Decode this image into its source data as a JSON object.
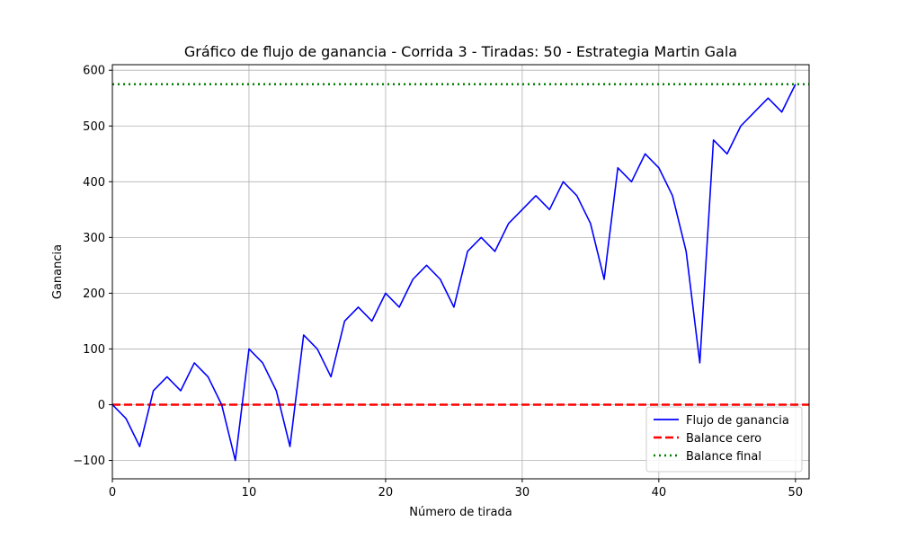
{
  "chart_data": {
    "type": "line",
    "title": "Gráfico de flujo de ganancia - Corrida 3 - Tiradas: 50 - Estrategia Martin Gala",
    "xlabel": "Número de tirada",
    "ylabel": "Ganancia",
    "xlim": [
      0,
      51
    ],
    "ylim": [
      -133,
      610
    ],
    "xticks": [
      0,
      10,
      20,
      30,
      40,
      50
    ],
    "yticks": [
      -100,
      0,
      100,
      200,
      300,
      400,
      500,
      600
    ],
    "grid": true,
    "legend_position": "lower-right",
    "x": [
      0,
      1,
      2,
      3,
      4,
      5,
      6,
      7,
      8,
      9,
      10,
      11,
      12,
      13,
      14,
      15,
      16,
      17,
      18,
      19,
      20,
      21,
      22,
      23,
      24,
      25,
      26,
      27,
      28,
      29,
      30,
      31,
      32,
      33,
      34,
      35,
      36,
      37,
      38,
      39,
      40,
      41,
      42,
      43,
      44,
      45,
      46,
      47,
      48,
      49,
      50
    ],
    "series": [
      {
        "name": "Flujo de ganancia",
        "color": "#0000ff",
        "style": "solid",
        "values": [
          0,
          -25,
          -75,
          25,
          50,
          25,
          75,
          50,
          0,
          -100,
          100,
          75,
          25,
          -75,
          125,
          100,
          50,
          150,
          175,
          150,
          200,
          175,
          225,
          250,
          225,
          175,
          275,
          300,
          275,
          325,
          350,
          375,
          350,
          400,
          375,
          325,
          225,
          425,
          400,
          450,
          425,
          375,
          275,
          75,
          475,
          450,
          500,
          525,
          550,
          525,
          575
        ]
      }
    ],
    "reference_lines": [
      {
        "name": "Balance cero",
        "y": 0,
        "color": "#ff0000",
        "style": "dashed"
      },
      {
        "name": "Balance final",
        "y": 575,
        "color": "#008000",
        "style": "dotted"
      }
    ]
  }
}
